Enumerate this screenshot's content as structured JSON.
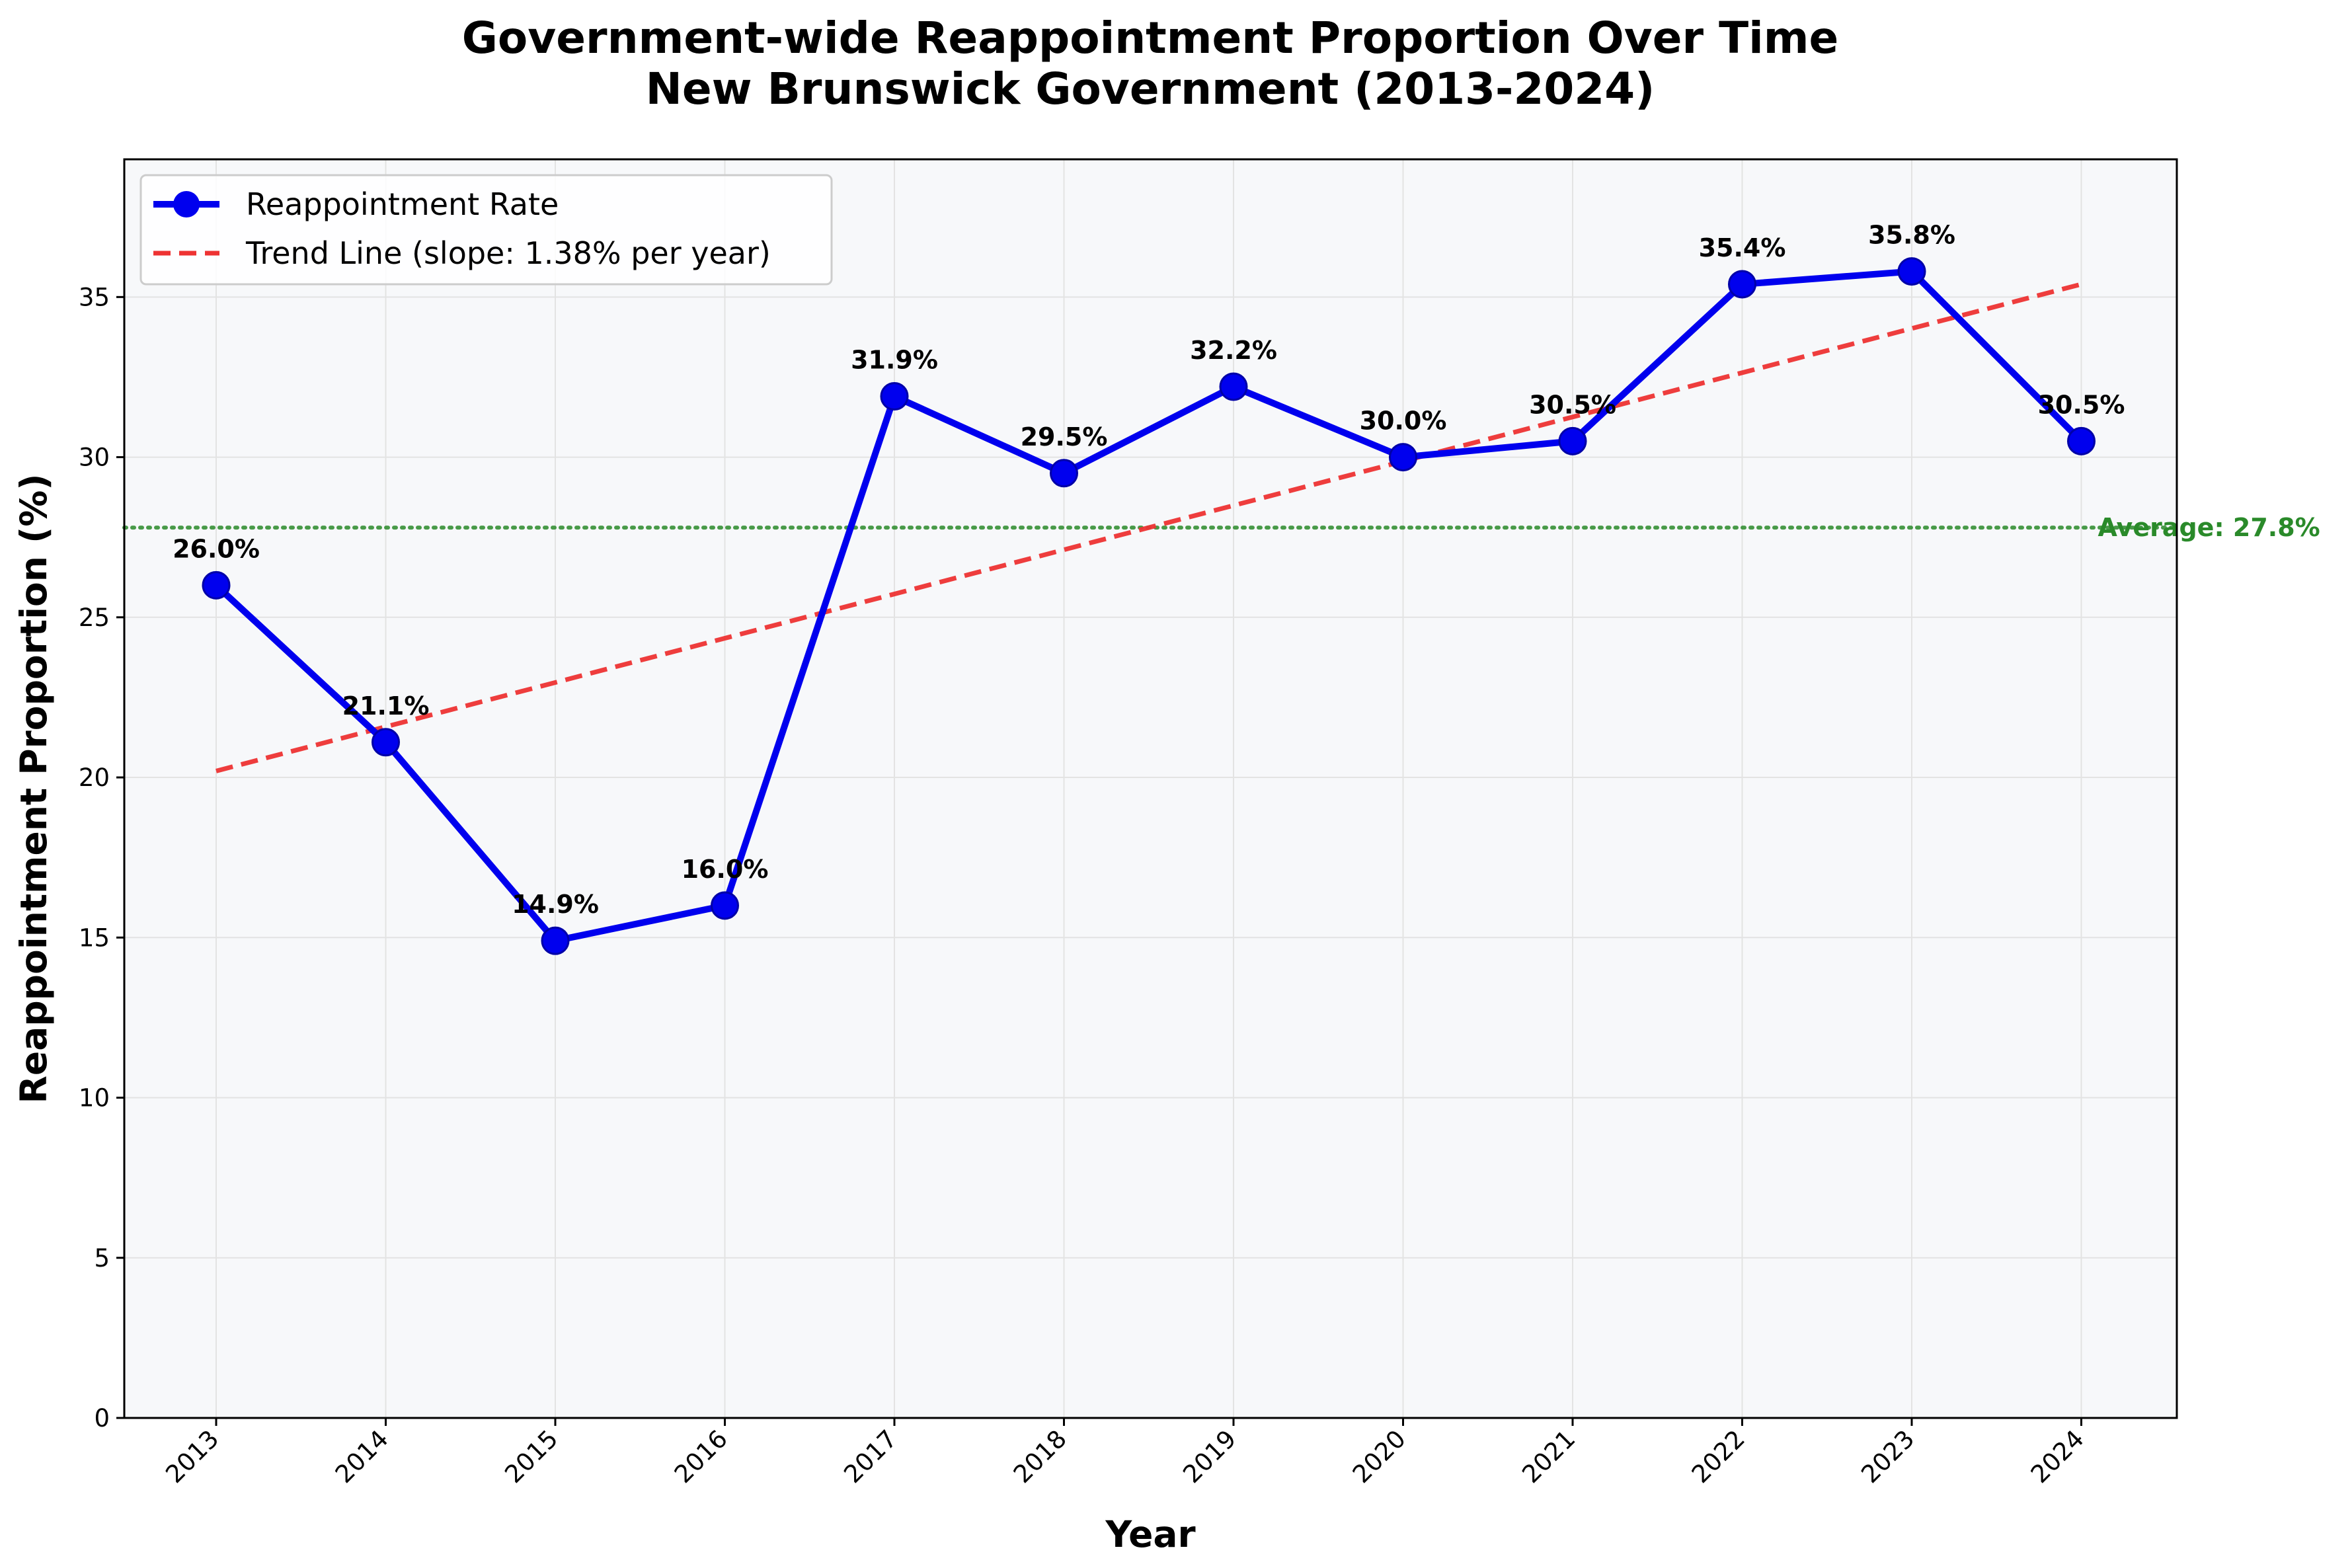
{
  "chart_data": {
    "type": "line",
    "title": "Government-wide Reappointment Proportion Over Time",
    "subtitle": "New Brunswick Government (2013-2024)",
    "xlabel": "Year",
    "ylabel": "Reappointment Proportion (%)",
    "categories": [
      "2013",
      "2014",
      "2015",
      "2016",
      "2017",
      "2018",
      "2019",
      "2020",
      "2021",
      "2022",
      "2023",
      "2024"
    ],
    "series": [
      {
        "name": "Reappointment Rate",
        "color": "#0000ee",
        "values": [
          26.0,
          21.1,
          14.9,
          16.0,
          31.9,
          29.5,
          32.2,
          30.0,
          30.5,
          35.4,
          35.8,
          30.5
        ],
        "labels": [
          "26.0%",
          "21.1%",
          "14.9%",
          "16.0%",
          "31.9%",
          "29.5%",
          "32.2%",
          "30.0%",
          "30.5%",
          "35.4%",
          "35.8%",
          "30.5%"
        ]
      }
    ],
    "trend_line": {
      "name": "Trend Line (slope: 1.38% per year)",
      "color": "#ee3333",
      "start": 20.2,
      "end": 35.4
    },
    "average_line": {
      "label": "Average: 27.8%",
      "value": 27.8,
      "color": "#2a8a2a"
    },
    "ylim": [
      0,
      39.3
    ],
    "yticks": [
      0,
      5,
      10,
      15,
      20,
      25,
      30,
      35
    ],
    "grid": true,
    "legend_position": "upper-left",
    "plot_background": "#f7f8fa"
  }
}
